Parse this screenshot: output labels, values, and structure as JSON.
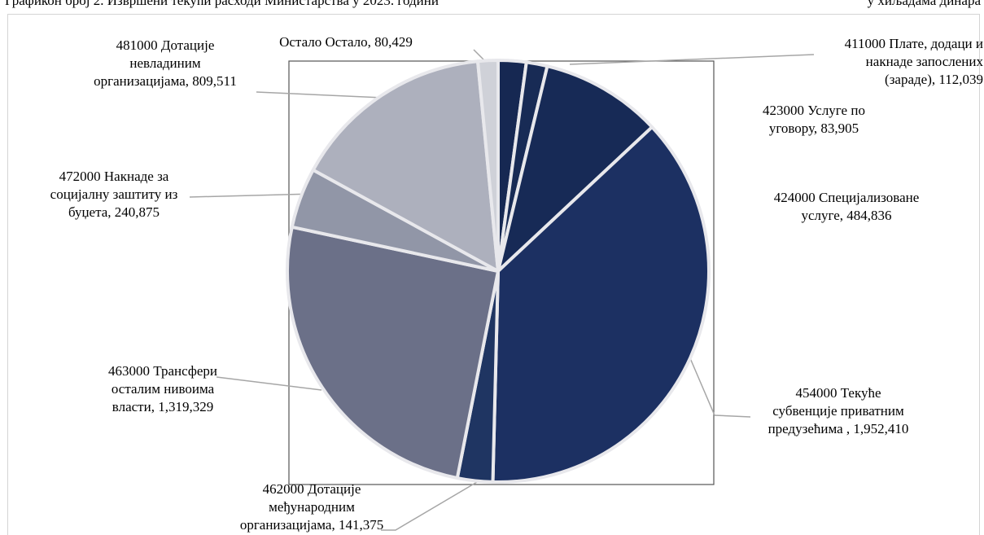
{
  "header": {
    "title": "Графикон број 2. Извршени текући расходи Министарства у 2023. години",
    "unit": "у хиљадама динара"
  },
  "chart_data": {
    "type": "pie",
    "title": "",
    "slices": [
      {
        "label": "411000 Плате, додаци и накнаде запослених (зараде)",
        "value": 112039,
        "value_text": "112,039",
        "color": "#162852"
      },
      {
        "label": "423000 Услуге по уговору",
        "value": 83905,
        "value_text": "83,905",
        "color": "#182b55"
      },
      {
        "label": "424000 Специјализоване услуге",
        "value": 484836,
        "value_text": "484,836",
        "color": "#172a56"
      },
      {
        "label": "454000 Текуће субвенције приватним предузећима",
        "value": 1952410,
        "value_text": "1,952,410",
        "color": "#1c3062"
      },
      {
        "label": "462000 Дотације међународним организацијама",
        "value": 141375,
        "value_text": "141,375",
        "color": "#1f3562"
      },
      {
        "label": "463000 Трансфери осталим нивоима власти",
        "value": 1319329,
        "value_text": "1,319,329",
        "color": "#6b7088"
      },
      {
        "label": "472000 Накнаде за социјалну заштиту из буџета",
        "value": 240875,
        "value_text": "240,875",
        "color": "#9196a7"
      },
      {
        "label": "481000 Дотације невладиним организацијама",
        "value": 809511,
        "value_text": "809,511",
        "color": "#adb0bd"
      },
      {
        "label": "Остало Остало",
        "value": 80429,
        "value_text": "80,429",
        "color": "#cfd1d8"
      }
    ]
  }
}
